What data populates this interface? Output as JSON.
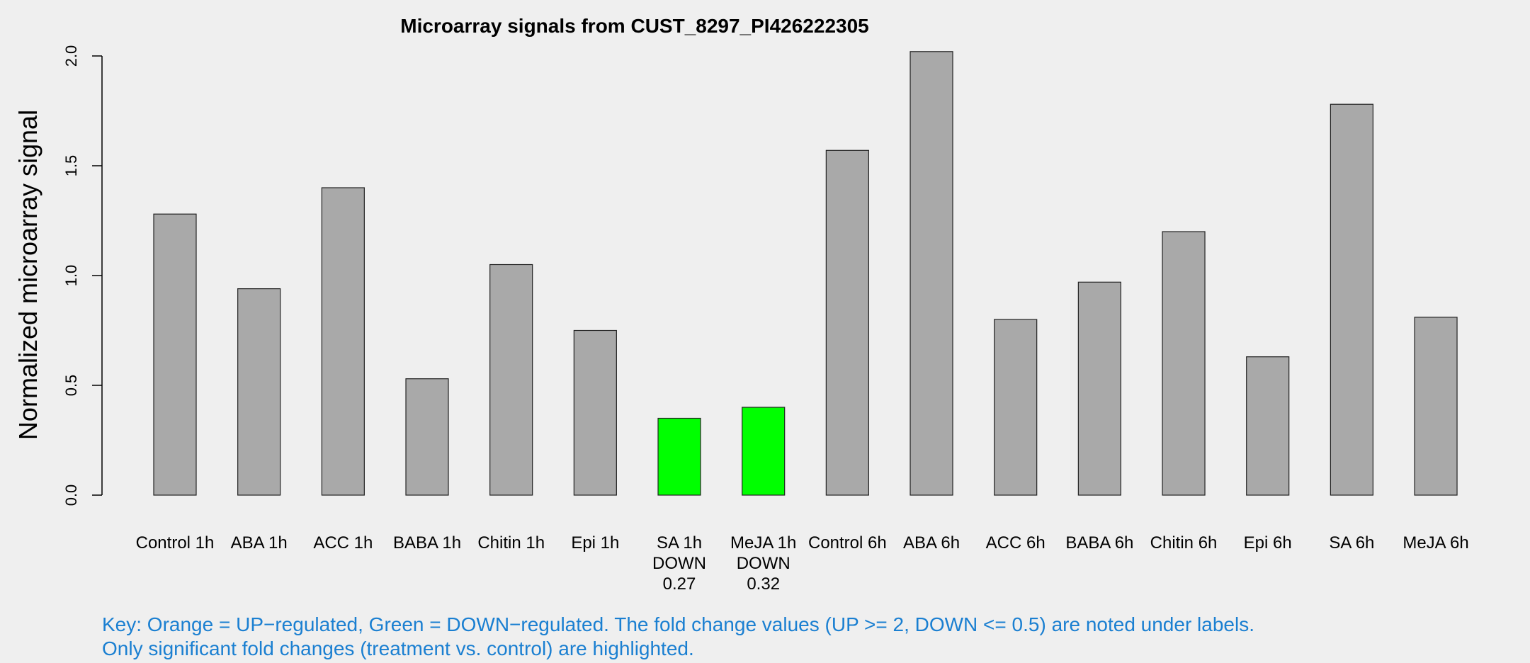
{
  "chart_data": {
    "type": "bar",
    "title": "Microarray signals from CUST_8297_PI426222305",
    "ylabel": "Normalized microarray signal",
    "xlabel": "",
    "ylim": [
      0,
      2.0
    ],
    "yticks": [
      "0.0",
      "0.5",
      "1.0",
      "1.5",
      "2.0"
    ],
    "grid": false,
    "categories": [
      "Control 1h",
      "ABA 1h",
      "ACC 1h",
      "BABA 1h",
      "Chitin 1h",
      "Epi 1h",
      "SA 1h",
      "MeJA 1h",
      "Control 6h",
      "ABA 6h",
      "ACC 6h",
      "BABA 6h",
      "Chitin 6h",
      "Epi 6h",
      "SA 6h",
      "MeJA 6h"
    ],
    "values": [
      1.28,
      0.94,
      1.4,
      0.53,
      1.05,
      0.75,
      0.35,
      0.4,
      1.57,
      2.02,
      0.8,
      0.97,
      1.2,
      0.63,
      1.78,
      0.81
    ],
    "annotations": [
      {
        "category": "SA 1h",
        "status": "DOWN",
        "fold_change": "0.27"
      },
      {
        "category": "MeJA 1h",
        "status": "DOWN",
        "fold_change": "0.32"
      }
    ],
    "colors": {
      "normal": "#a9a9a9",
      "down": "#00ff00",
      "up": "#ffa500"
    }
  },
  "key": {
    "line1": "Key: Orange = UP−regulated, Green = DOWN−regulated. The fold change values (UP >= 2, DOWN <= 0.5) are noted under labels.",
    "line2": "Only significant fold changes (treatment vs. control) are highlighted."
  }
}
